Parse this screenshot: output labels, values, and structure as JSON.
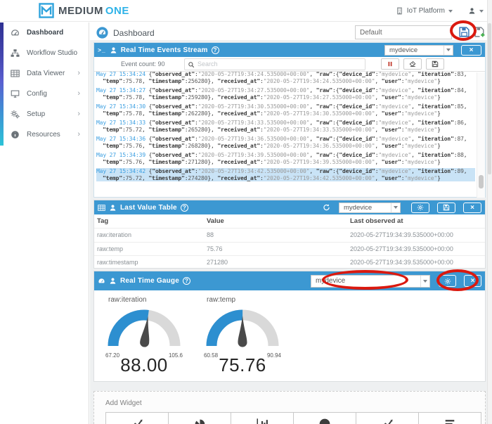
{
  "icons": {
    "terminal": ">_",
    "help": "?",
    "close": "×",
    "chevron": "›"
  },
  "topbar": {
    "brand_medium": "MEDIUM",
    "brand_one": "ONE",
    "platform_menu": "IoT Platform"
  },
  "sidebar": {
    "items": [
      {
        "label": "Dashboard",
        "icon": "tachometer",
        "active": true,
        "chevron": false
      },
      {
        "label": "Workflow Studio",
        "icon": "sitemap",
        "active": false,
        "chevron": false
      },
      {
        "label": "Data Viewer",
        "icon": "table",
        "active": false,
        "chevron": true
      },
      {
        "label": "Config",
        "icon": "desktop",
        "active": false,
        "chevron": true
      },
      {
        "label": "Setup",
        "icon": "cogs",
        "active": false,
        "chevron": true
      },
      {
        "label": "Resources",
        "icon": "info",
        "active": false,
        "chevron": true
      }
    ]
  },
  "main_header": {
    "title": "Dashboard",
    "dashboard_name_value": "Default"
  },
  "events_panel": {
    "title": "Real Time Events Stream",
    "device": "mydevice",
    "event_count": "Event count: 90",
    "search_placeholder": "Search",
    "events": [
      {
        "time": "May 27 15:34:24",
        "observed_at": "2020-05-27T19:34:24.535000+00:00",
        "device_id": "mydevice",
        "iteration": "83",
        "temp": "75.78",
        "timestamp": "256280",
        "received_at": "2020-05-27T19:34:24.535000+00:00",
        "user": "mydevice",
        "highlighted": false
      },
      {
        "time": "May 27 15:34:27",
        "observed_at": "2020-05-27T19:34:27.535000+00:00",
        "device_id": "mydevice",
        "iteration": "84",
        "temp": "75.78",
        "timestamp": "259280",
        "received_at": "2020-05-27T19:34:27.535000+00:00",
        "user": "mydevice",
        "highlighted": false
      },
      {
        "time": "May 27 15:34:30",
        "observed_at": "2020-05-27T19:34:30.535000+00:00",
        "device_id": "mydevice",
        "iteration": "85",
        "temp": "75.78",
        "timestamp": "262280",
        "received_at": "2020-05-27T19:34:30.535000+00:00",
        "user": "mydevice",
        "highlighted": false
      },
      {
        "time": "May 27 15:34:33",
        "observed_at": "2020-05-27T19:34:33.535000+00:00",
        "device_id": "mydevice",
        "iteration": "86",
        "temp": "75.72",
        "timestamp": "265280",
        "received_at": "2020-05-27T19:34:33.535000+00:00",
        "user": "mydevice",
        "highlighted": false
      },
      {
        "time": "May 27 15:34:36",
        "observed_at": "2020-05-27T19:34:36.535000+00:00",
        "device_id": "mydevice",
        "iteration": "87",
        "temp": "75.76",
        "timestamp": "268280",
        "received_at": "2020-05-27T19:34:36.535000+00:00",
        "user": "mydevice",
        "highlighted": false
      },
      {
        "time": "May 27 15:34:39",
        "observed_at": "2020-05-27T19:34:39.535000+00:00",
        "device_id": "mydevice",
        "iteration": "88",
        "temp": "75.76",
        "timestamp": "271280",
        "received_at": "2020-05-27T19:34:39.535000+00:00",
        "user": "mydevice",
        "highlighted": false
      },
      {
        "time": "May 27 15:34:42",
        "observed_at": "2020-05-27T19:34:42.535000+00:00",
        "device_id": "mydevice",
        "iteration": "89",
        "temp": "75.72",
        "timestamp": "274280",
        "received_at": "2020-05-27T19:34:42.535000+00:00",
        "user": "mydevice",
        "highlighted": true
      }
    ]
  },
  "last_value_panel": {
    "title": "Last Value Table",
    "device": "mydevice",
    "columns": [
      "Tag",
      "Value",
      "Last observed at"
    ],
    "rows": [
      [
        "raw:iteration",
        "88",
        "2020-05-27T19:34:39.535000+00:00"
      ],
      [
        "raw:temp",
        "75.76",
        "2020-05-27T19:34:39.535000+00:00"
      ],
      [
        "raw:timestamp",
        "271280",
        "2020-05-27T19:34:39.535000+00:00"
      ]
    ]
  },
  "gauge_panel": {
    "title": "Real Time Gauge",
    "device": "mydevice",
    "gauges": [
      {
        "label": "raw:iteration",
        "min": 67.2,
        "max": 105.6,
        "value": 88.0,
        "value_display": "88.00",
        "min_label": "67.20",
        "max_label": "105.6"
      },
      {
        "label": "raw:temp",
        "min": 60.58,
        "max": 90.94,
        "value": 75.76,
        "value_display": "75.76",
        "min_label": "60.58",
        "max_label": "90.94"
      }
    ]
  },
  "chart_data": [
    {
      "type": "gauge",
      "title": "raw:iteration",
      "min": 67.2,
      "max": 105.6,
      "value": 88.0
    },
    {
      "type": "gauge",
      "title": "raw:temp",
      "min": 60.58,
      "max": 90.94,
      "value": 75.76
    }
  ],
  "add_widget": {
    "label": "Add Widget",
    "widgets": [
      {
        "icon": "line-chart"
      },
      {
        "icon": "pie-chart"
      },
      {
        "icon": "bar-chart"
      },
      {
        "icon": "globe"
      },
      {
        "icon": "line-chart"
      },
      {
        "icon": "list"
      }
    ]
  },
  "colors": {
    "header_blue": "#3c98d2",
    "highlight_row": "#c9e3f6",
    "gauge_blue": "#2d8fd0",
    "gauge_track": "#d9d9d9",
    "needle": "#4a4a4a",
    "annotation_red": "#da190f",
    "pause_red": "#c0392b",
    "add_green": "#3fae49",
    "log_time_blue": "#3da0e2"
  }
}
